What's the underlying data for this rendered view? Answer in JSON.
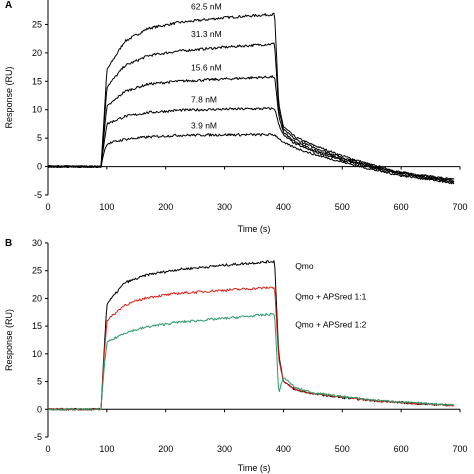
{
  "chart_data": [
    {
      "type": "line",
      "panel_label": "A",
      "xlabel": "Time (s)",
      "ylabel": "Response (RU)",
      "xlim": [
        0,
        700
      ],
      "ylim": [
        -5,
        30
      ],
      "xticks": [
        0,
        100,
        200,
        300,
        400,
        500,
        600,
        700
      ],
      "yticks": [
        -5,
        0,
        5,
        10,
        15,
        20,
        25
      ],
      "grid": false,
      "line_color": "#000000",
      "series": [
        {
          "name": "62.5 nM",
          "label": "62.5 nM",
          "x": [
            0,
            90,
            95,
            100,
            130,
            170,
            220,
            300,
            385,
            392,
            400,
            420,
            450,
            500,
            550,
            600,
            650,
            690
          ],
          "y": [
            0,
            0,
            8,
            17,
            22,
            24.3,
            25.3,
            26.2,
            26.8,
            11,
            7,
            5.2,
            3.8,
            1.9,
            0.3,
            -1.0,
            -1.7,
            -2.3
          ]
        },
        {
          "name": "31.3 nM",
          "label": "31.3 nM",
          "x": [
            0,
            90,
            95,
            100,
            130,
            170,
            220,
            300,
            385,
            392,
            400,
            420,
            450,
            500,
            550,
            600,
            650,
            690
          ],
          "y": [
            0,
            0,
            7,
            14,
            17.7,
            19.5,
            20.3,
            21.0,
            21.6,
            10,
            6.5,
            4.8,
            3.4,
            1.6,
            0.1,
            -1.1,
            -1.8,
            -2.5
          ]
        },
        {
          "name": "15.6 nM",
          "label": "15.6 nM",
          "x": [
            0,
            90,
            95,
            100,
            130,
            170,
            220,
            300,
            385,
            392,
            400,
            420,
            450,
            500,
            550,
            600,
            650,
            690
          ],
          "y": [
            0,
            0,
            5.5,
            10.5,
            13.2,
            14.5,
            15.0,
            15.4,
            15.8,
            9,
            6,
            4.3,
            3.0,
            1.3,
            0,
            -1.2,
            -2.0,
            -2.6
          ]
        },
        {
          "name": "7.8 nM",
          "label": "7.8 nM",
          "x": [
            0,
            90,
            95,
            100,
            130,
            170,
            220,
            300,
            385,
            392,
            400,
            420,
            450,
            500,
            550,
            600,
            650,
            690
          ],
          "y": [
            0,
            0,
            4,
            7.5,
            8.8,
            9.5,
            9.9,
            10.1,
            10.2,
            7.5,
            5.5,
            4.0,
            2.7,
            1.1,
            -0.2,
            -1.4,
            -2.1,
            -2.8
          ]
        },
        {
          "name": "3.9 nM",
          "label": "3.9 nM",
          "x": [
            0,
            90,
            95,
            100,
            130,
            170,
            220,
            300,
            385,
            392,
            400,
            420,
            450,
            500,
            550,
            600,
            650,
            690
          ],
          "y": [
            0,
            0,
            2.5,
            4.0,
            4.8,
            5.2,
            5.5,
            5.6,
            5.6,
            5.0,
            4.2,
            3.3,
            2.2,
            0.8,
            -0.5,
            -1.6,
            -2.3,
            -3.0
          ]
        }
      ]
    },
    {
      "type": "line",
      "panel_label": "B",
      "xlabel": "Time (s)",
      "ylabel": "Response (RU)",
      "xlim": [
        0,
        700
      ],
      "ylim": [
        -5,
        30
      ],
      "xticks": [
        0,
        100,
        200,
        300,
        400,
        500,
        600,
        700
      ],
      "yticks": [
        -5,
        0,
        5,
        10,
        15,
        20,
        25,
        30
      ],
      "grid": false,
      "series": [
        {
          "name": "Qmo",
          "label": "Qmo",
          "color": "#000000",
          "x": [
            0,
            90,
            95,
            100,
            130,
            170,
            220,
            300,
            385,
            392,
            400,
            420,
            450,
            500,
            550,
            600,
            650,
            690
          ],
          "y": [
            0,
            0,
            10,
            19,
            22.8,
            24.3,
            25.2,
            26.0,
            26.7,
            10,
            5,
            3.5,
            2.8,
            2.1,
            1.6,
            1.2,
            0.9,
            0.7
          ]
        },
        {
          "name": "Qmo + APSred 1:1",
          "label": "Qmo + APSred 1:1",
          "color": "#d9261c",
          "x": [
            0,
            90,
            95,
            100,
            130,
            170,
            220,
            300,
            385,
            392,
            400,
            420,
            450,
            500,
            550,
            600,
            650,
            690
          ],
          "y": [
            0,
            0,
            9,
            16,
            18.8,
            20.2,
            20.9,
            21.5,
            22.0,
            9,
            5,
            3.6,
            2.9,
            2.2,
            1.6,
            1.2,
            0.9,
            0.7
          ]
        },
        {
          "name": "Qmo + APSred 1:2",
          "label": "Qmo + APSred 1:2",
          "color": "#2f9a6a",
          "x": [
            0,
            90,
            95,
            100,
            130,
            170,
            220,
            300,
            385,
            392,
            400,
            420,
            450,
            500,
            550,
            600,
            650,
            690
          ],
          "y": [
            0,
            0,
            7,
            12,
            13.8,
            14.9,
            15.7,
            16.4,
            17.2,
            3,
            5.8,
            3.9,
            3.0,
            2.3,
            1.7,
            1.3,
            1.0,
            0.8
          ]
        }
      ]
    }
  ]
}
